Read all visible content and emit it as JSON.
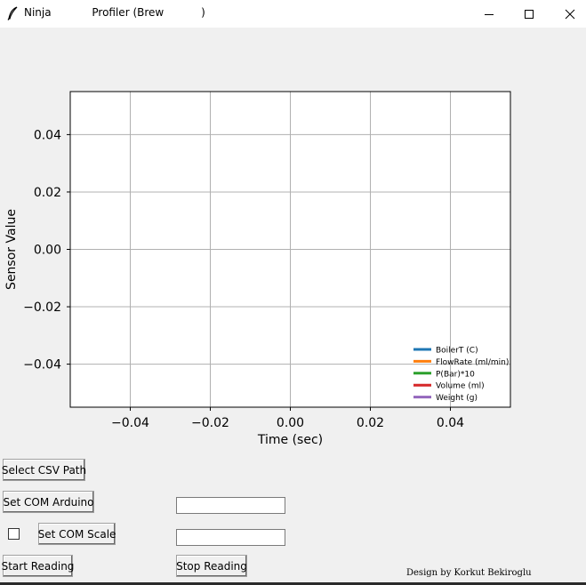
{
  "window": {
    "title": "Ninja            Profiler (Brew           )",
    "minimize_glyph": "—",
    "maximize_glyph": "☐",
    "close_glyph": "✕"
  },
  "chart_data": {
    "type": "line",
    "xlabel": "Time (sec)",
    "ylabel": "Sensor Value",
    "xlim": [
      -0.055,
      0.055
    ],
    "ylim": [
      -0.055,
      0.055
    ],
    "xticks": [
      -0.04,
      -0.02,
      0.0,
      0.02,
      0.04
    ],
    "yticks": [
      -0.04,
      -0.02,
      0.0,
      0.02,
      0.04
    ],
    "xtick_labels": [
      "−0.04",
      "−0.02",
      "0.00",
      "0.02",
      "0.04"
    ],
    "ytick_labels": [
      "−0.04",
      "−0.02",
      "0.00",
      "0.02",
      "0.04"
    ],
    "grid": true,
    "legend_position": "bottom-right",
    "series": [
      {
        "name": "BoilerT (C)",
        "color": "#1f77b4",
        "x": [],
        "y": []
      },
      {
        "name": "FlowRate (ml/min)",
        "color": "#ff7f0e",
        "x": [],
        "y": []
      },
      {
        "name": "P(Bar)*10",
        "color": "#2ca02c",
        "x": [],
        "y": []
      },
      {
        "name": "Volume (ml)",
        "color": "#d62728",
        "x": [],
        "y": []
      },
      {
        "name": "Weight (g)",
        "color": "#9467bd",
        "x": [],
        "y": []
      }
    ]
  },
  "controls": {
    "select_csv_label": "Select CSV Path",
    "set_com_arduino_label": "Set COM Arduino",
    "set_com_scale_label": "Set COM Scale",
    "start_reading_label": "Start Reading",
    "stop_reading_label": "Stop Reading",
    "arduino_com_value": "",
    "scale_com_value": "",
    "scale_enabled": false
  },
  "footer": {
    "credit": "Design by Korkut Bekiroglu"
  }
}
